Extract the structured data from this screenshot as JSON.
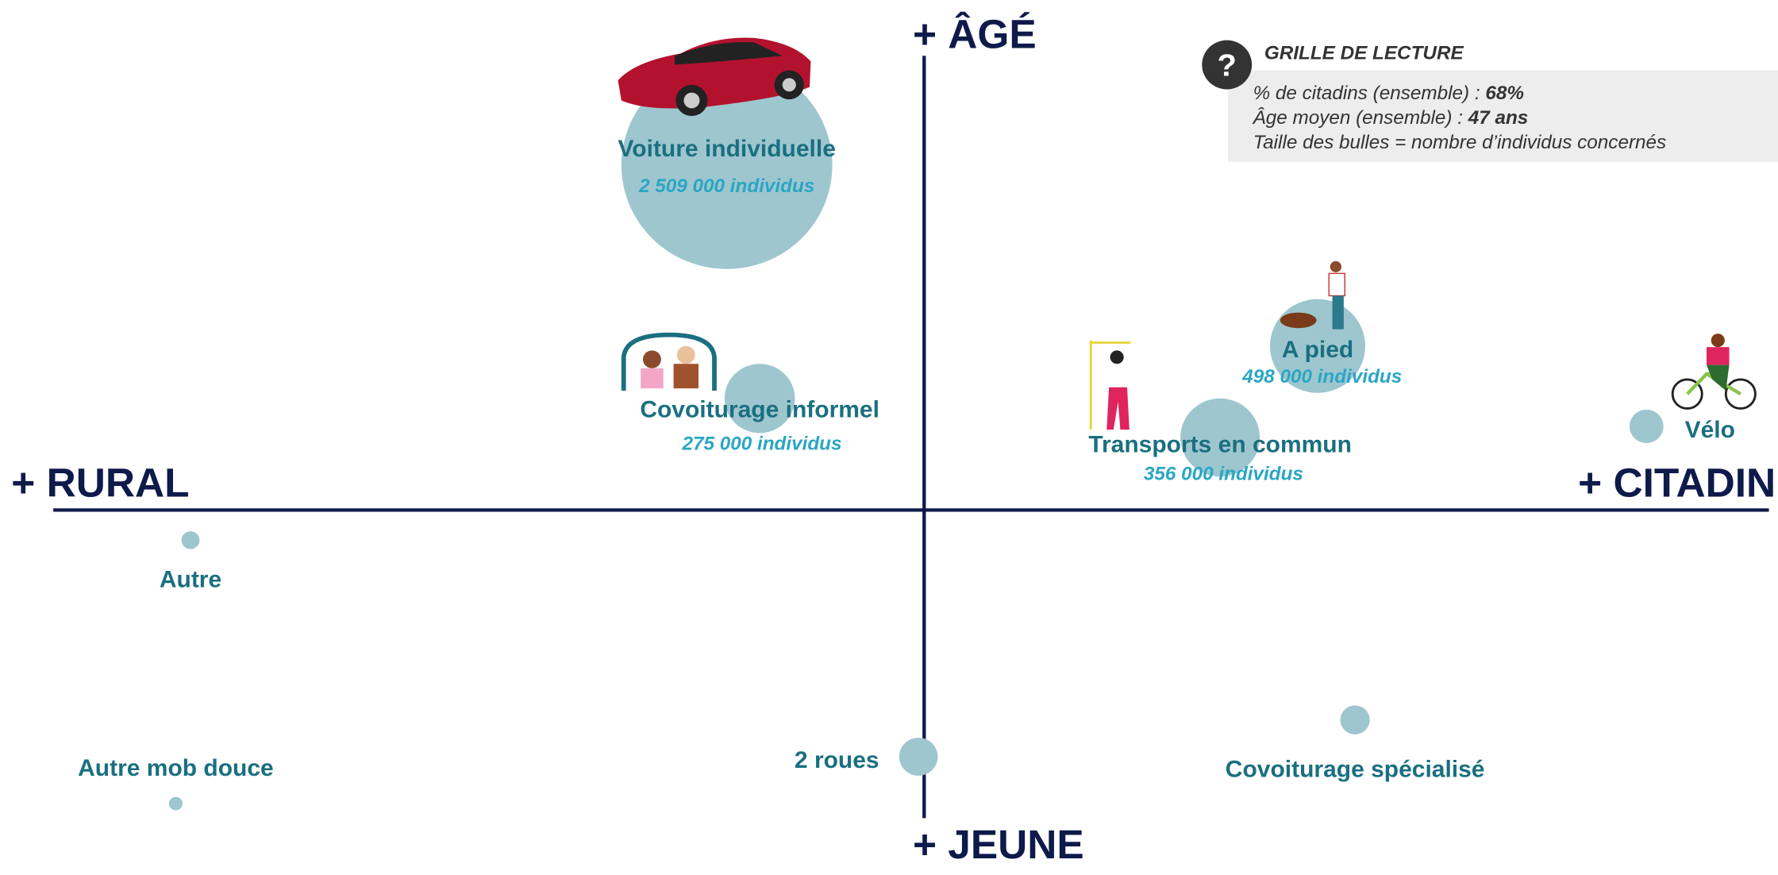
{
  "axes": {
    "top": "+ ÂGÉ",
    "bottom": "+ JEUNE",
    "left": "+ RURAL",
    "right": "+ CITADIN"
  },
  "legend": {
    "title": "GRILLE DE LECTURE",
    "lines": [
      {
        "text": "% de citadins (ensemble) : ",
        "strong": "68%"
      },
      {
        "text": "Âge moyen (ensemble) : ",
        "strong": "47 ans"
      },
      {
        "text": "Taille des bulles = nombre d’individus concernés"
      }
    ]
  },
  "nodes": [
    {
      "label": "Voiture individuelle",
      "count": "2 509 000 individus"
    },
    {
      "label": "Covoiturage informel",
      "count": "275 000 individus"
    },
    {
      "label": "A pied",
      "count": "498 000 individus"
    },
    {
      "label": "Transports en commun",
      "count": "356 000 individus"
    },
    {
      "label": "Vélo"
    },
    {
      "label": "Autre"
    },
    {
      "label": "Autre mob douce"
    },
    {
      "label": "2 roues"
    },
    {
      "label": "Covoiturage spécialisé"
    }
  ]
}
